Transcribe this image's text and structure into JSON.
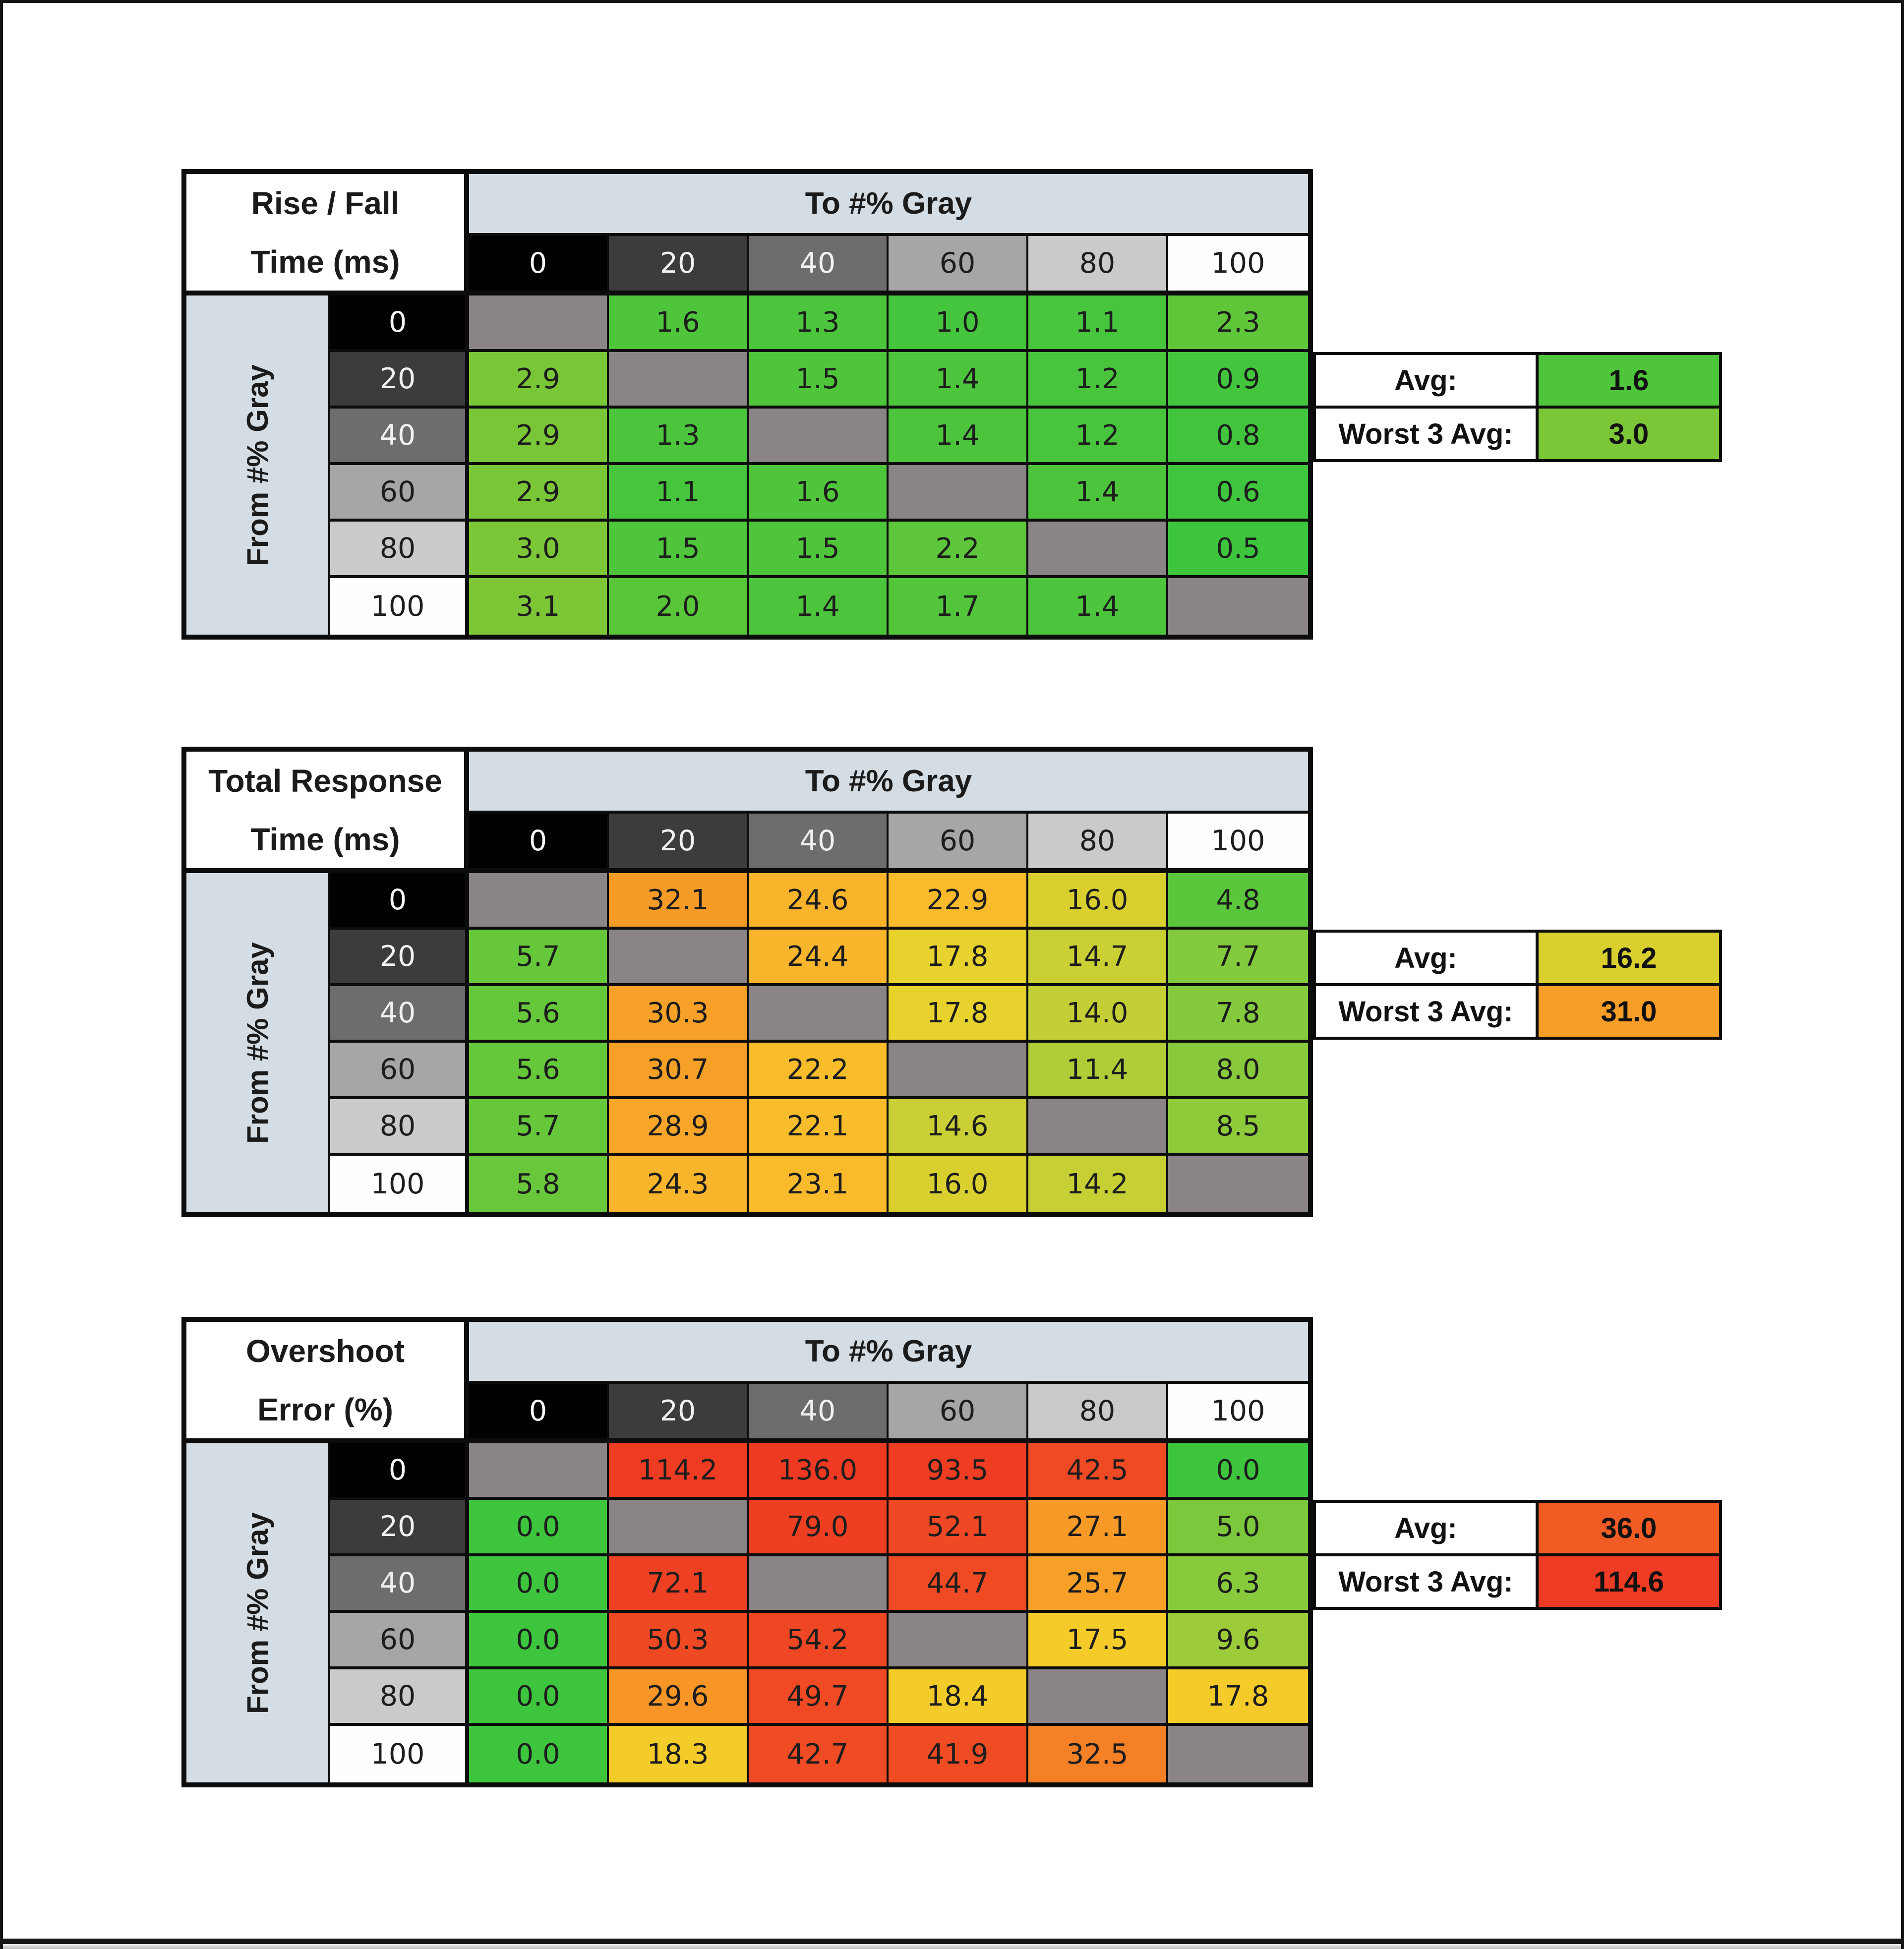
{
  "page": {
    "background": "#ffffff",
    "frame_border": "#141414",
    "bottom_line": "#161616",
    "bottom_strip_top": "#ececec",
    "bottom_strip_bottom": "#9e9e9e"
  },
  "shared": {
    "to_label": "To #% Gray",
    "from_label": "From #% Gray",
    "avg_label": "Avg:",
    "worst_label": "Worst 3 Avg:",
    "band_bg": "#d4dde3",
    "diag_bg": "#8a8487",
    "text_color": "#1d1d1d",
    "levels": [
      {
        "label": "0",
        "bg": "#010101",
        "fg": "#f7f7f7"
      },
      {
        "label": "20",
        "bg": "#3d3b3c",
        "fg": "#f2f0f1"
      },
      {
        "label": "40",
        "bg": "#6e6c6d",
        "fg": "#f2f0f1"
      },
      {
        "label": "60",
        "bg": "#a7a5a6",
        "fg": "#1d1d1d"
      },
      {
        "label": "80",
        "bg": "#cbcaca",
        "fg": "#1d1d1d"
      },
      {
        "label": "100",
        "bg": "#fefefe",
        "fg": "#1d1d1d"
      }
    ]
  },
  "chart_data": [
    {
      "type": "heatmap",
      "title_line1": "Rise / Fall",
      "title_line2": "Time (ms)",
      "col_axis": "To #% Gray",
      "row_axis": "From #% Gray",
      "categories": [
        0,
        20,
        40,
        60,
        80,
        100
      ],
      "rows": [
        {
          "from": 0,
          "values": [
            null,
            1.6,
            1.3,
            1.0,
            1.1,
            2.3
          ],
          "colors": [
            null,
            "#4fc53b",
            "#4ac53c",
            "#44c53d",
            "#46c53d",
            "#5fc63a"
          ]
        },
        {
          "from": 20,
          "values": [
            2.9,
            null,
            1.5,
            1.4,
            1.2,
            0.9
          ],
          "colors": [
            "#79c737",
            null,
            "#4ec53b",
            "#4cc53c",
            "#48c53c",
            "#43c53d"
          ]
        },
        {
          "from": 40,
          "values": [
            2.9,
            1.3,
            null,
            1.4,
            1.2,
            0.8
          ],
          "colors": [
            "#79c737",
            "#4ac53c",
            null,
            "#4cc53c",
            "#48c53c",
            "#41c53d"
          ]
        },
        {
          "from": 60,
          "values": [
            2.9,
            1.1,
            1.6,
            null,
            1.4,
            0.6
          ],
          "colors": [
            "#79c737",
            "#46c53d",
            "#4fc53b",
            null,
            "#4cc53c",
            "#3fc53e"
          ]
        },
        {
          "from": 80,
          "values": [
            3.0,
            1.5,
            1.5,
            2.2,
            null,
            0.5
          ],
          "colors": [
            "#7bc737",
            "#4ec53b",
            "#4ec53b",
            "#5dc63a",
            null,
            "#3ec53e"
          ]
        },
        {
          "from": 100,
          "values": [
            3.1,
            2.0,
            1.4,
            1.7,
            1.4,
            null
          ],
          "colors": [
            "#7dc737",
            "#59c63a",
            "#4cc53c",
            "#52c53b",
            "#4cc53c",
            null
          ]
        }
      ],
      "avg": 1.6,
      "avg_color": "#4fc53b",
      "worst3": 3.0,
      "worst3_color": "#7bc737"
    },
    {
      "type": "heatmap",
      "title_line1": "Total Response",
      "title_line2": "Time (ms)",
      "col_axis": "To #% Gray",
      "row_axis": "From #% Gray",
      "categories": [
        0,
        20,
        40,
        60,
        80,
        100
      ],
      "rows": [
        {
          "from": 0,
          "values": [
            null,
            32.1,
            24.6,
            22.9,
            16.0,
            4.8
          ],
          "colors": [
            null,
            "#f79b27",
            "#f9b42b",
            "#f9bb2c",
            "#d9d030",
            "#5ac63b"
          ]
        },
        {
          "from": 20,
          "values": [
            5.7,
            null,
            24.4,
            17.8,
            14.7,
            7.7
          ],
          "colors": [
            "#66c73a",
            null,
            "#f9b52b",
            "#e8d22e",
            "#cacf34",
            "#83ca3c"
          ]
        },
        {
          "from": 40,
          "values": [
            5.6,
            30.3,
            null,
            17.8,
            14.0,
            7.8
          ],
          "colors": [
            "#65c73a",
            "#f7a128",
            null,
            "#e8d22e",
            "#c4cf35",
            "#85ca3c"
          ]
        },
        {
          "from": 60,
          "values": [
            5.6,
            30.7,
            22.2,
            null,
            11.4,
            8.0
          ],
          "colors": [
            "#65c73a",
            "#f7a028",
            "#f9bd2c",
            null,
            "#afcd37",
            "#88ca3c"
          ]
        },
        {
          "from": 80,
          "values": [
            5.7,
            28.9,
            22.1,
            14.6,
            null,
            8.5
          ],
          "colors": [
            "#66c73a",
            "#f8a629",
            "#f9bd2c",
            "#c9cf34",
            null,
            "#8ecb3b"
          ]
        },
        {
          "from": 100,
          "values": [
            5.8,
            24.3,
            23.1,
            16.0,
            14.2,
            null
          ],
          "colors": [
            "#68c73a",
            "#f9b52b",
            "#f9ba2c",
            "#d9d030",
            "#c6cf34",
            null
          ]
        }
      ],
      "avg": 16.2,
      "avg_color": "#d9d030",
      "worst3": 31.0,
      "worst3_color": "#f79e28"
    },
    {
      "type": "heatmap",
      "title_line1": "Overshoot",
      "title_line2": "Error (%)",
      "col_axis": "To #% Gray",
      "row_axis": "From #% Gray",
      "categories": [
        0,
        20,
        40,
        60,
        80,
        100
      ],
      "rows": [
        {
          "from": 0,
          "values": [
            null,
            114.2,
            136.0,
            93.5,
            42.5,
            0.0
          ],
          "colors": [
            null,
            "#ee3c23",
            "#ee3a23",
            "#ee3d23",
            "#ef4a24",
            "#3dc53e"
          ]
        },
        {
          "from": 20,
          "values": [
            0.0,
            null,
            79.0,
            52.1,
            27.1,
            5.0
          ],
          "colors": [
            "#3dc53e",
            null,
            "#ee3f23",
            "#ef4824",
            "#f89a27",
            "#7cc83d"
          ]
        },
        {
          "from": 40,
          "values": [
            0.0,
            72.1,
            null,
            44.7,
            25.7,
            6.3
          ],
          "colors": [
            "#3dc53e",
            "#ee4123",
            null,
            "#ef4a24",
            "#f89f28",
            "#87ca3c"
          ]
        },
        {
          "from": 60,
          "values": [
            0.0,
            50.3,
            54.2,
            null,
            17.5,
            9.6
          ],
          "colors": [
            "#3dc53e",
            "#ef4924",
            "#ef4724",
            null,
            "#f4cb29",
            "#9dcc3a"
          ]
        },
        {
          "from": 80,
          "values": [
            0.0,
            29.6,
            49.7,
            18.4,
            null,
            17.8
          ],
          "colors": [
            "#3dc53e",
            "#f79527",
            "#ef4a24",
            "#f3cc2a",
            null,
            "#f4cb29"
          ]
        },
        {
          "from": 100,
          "values": [
            0.0,
            18.3,
            42.7,
            41.9,
            32.5,
            null
          ],
          "colors": [
            "#3dc53e",
            "#f3cc2a",
            "#ef4b24",
            "#ef4c24",
            "#f58026",
            null
          ]
        }
      ],
      "avg": 36.0,
      "avg_color": "#f15c25",
      "worst3": 114.6,
      "worst3_color": "#ee3b23"
    }
  ]
}
